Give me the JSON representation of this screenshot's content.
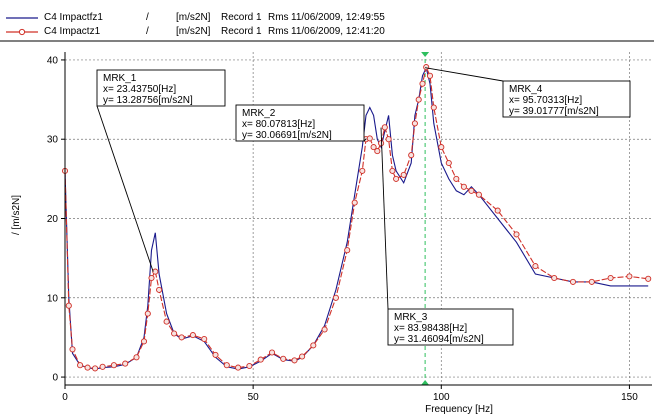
{
  "legend": [
    {
      "name": "C4 Impactfz1",
      "sep": "/",
      "unit": "[m/s2N]",
      "record": "Record 1",
      "kind": "Rms",
      "timestamp": "11/06/2009, 12:49:55",
      "color": "#1a1a8c"
    },
    {
      "name": "C4 Impactz1",
      "sep": "/",
      "unit": "[m/s2N]",
      "record": "Record 1",
      "kind": "Rms",
      "timestamp": "11/06/2009, 12:41:20",
      "color": "#d03028"
    }
  ],
  "chart_data": {
    "type": "line",
    "xlabel": "Frequency [Hz]",
    "ylabel": "/ [m/s2N]",
    "xlim": [
      0,
      156
    ],
    "ylim": [
      -1,
      41
    ],
    "xticks": [
      0,
      50,
      100,
      150
    ],
    "yticks": [
      0,
      10,
      20,
      30,
      40
    ],
    "grid": true,
    "series": [
      {
        "name": "C4 Impactfz1",
        "color": "#1a1a8c",
        "marker": "none",
        "x": [
          0,
          1,
          2,
          4,
          6,
          8,
          10,
          13,
          16,
          19,
          21,
          22,
          23,
          24,
          25,
          27,
          29,
          31,
          34,
          37,
          40,
          43,
          46,
          49,
          52,
          55,
          58,
          61,
          63,
          66,
          69,
          72,
          75,
          77,
          79,
          80,
          81,
          82,
          83,
          84,
          85,
          86,
          87,
          88,
          90,
          92,
          93,
          94,
          95,
          96,
          97,
          98,
          100,
          102,
          104,
          106,
          108,
          110,
          115,
          120,
          125,
          130,
          135,
          140,
          145,
          150,
          155
        ],
        "y": [
          26,
          10,
          3,
          1.5,
          1.2,
          1.0,
          1.2,
          1.3,
          1.6,
          2.5,
          5,
          9,
          16,
          18.2,
          13,
          8,
          5.5,
          4.8,
          5.2,
          4.5,
          2.5,
          1.3,
          1.0,
          1.3,
          2.0,
          3.0,
          2.2,
          2.0,
          2.5,
          4,
          6.5,
          11,
          17,
          23,
          29,
          33,
          34,
          33,
          30,
          29,
          31,
          33,
          28,
          26,
          24.5,
          27,
          33,
          35,
          38,
          39,
          37,
          32,
          27,
          25,
          23.5,
          23,
          24,
          23,
          20,
          17,
          13,
          12.5,
          12,
          12,
          11.5,
          11.5,
          11.5
        ]
      },
      {
        "name": "C4 Impactz1",
        "color": "#d03028",
        "marker": "circle",
        "x": [
          0,
          1,
          2,
          4,
          6,
          8,
          10,
          13,
          16,
          19,
          21,
          22,
          23,
          24,
          25,
          27,
          29,
          31,
          34,
          37,
          40,
          43,
          46,
          49,
          52,
          55,
          58,
          61,
          63,
          66,
          69,
          72,
          75,
          77,
          79,
          80,
          81,
          82,
          83,
          84,
          85,
          86,
          87,
          88,
          90,
          92,
          93,
          94,
          95,
          96,
          97,
          98,
          100,
          102,
          104,
          106,
          108,
          110,
          115,
          120,
          125,
          130,
          135,
          140,
          145,
          150,
          155
        ],
        "y": [
          26,
          9,
          3.5,
          1.5,
          1.2,
          1.1,
          1.3,
          1.5,
          1.7,
          2.5,
          4.5,
          8,
          12.5,
          13.3,
          11,
          7,
          5.5,
          5,
          5.3,
          4.8,
          2.8,
          1.5,
          1.2,
          1.4,
          2.2,
          3.1,
          2.3,
          2.1,
          2.6,
          4,
          6,
          10,
          16,
          22,
          26,
          30,
          30.1,
          29,
          28.5,
          29.5,
          31.5,
          30,
          26,
          25,
          25.5,
          28,
          32,
          35,
          37,
          39.1,
          38,
          34,
          29,
          27,
          25,
          24,
          23.5,
          23,
          21,
          18,
          14,
          12.5,
          12,
          12,
          12.5,
          12.7,
          12.4
        ]
      }
    ],
    "markers": [
      {
        "label": "MRK_1",
        "x_text": "x= 23.43750[Hz]",
        "y_text": "y= 13.28756[m/s2N]",
        "x": 23.4375,
        "y": 13.28756
      },
      {
        "label": "MRK_2",
        "x_text": "x= 80.07813[Hz]",
        "y_text": "y= 30.06691[m/s2N]",
        "x": 80.07813,
        "y": 30.06691
      },
      {
        "label": "MRK_3",
        "x_text": "x= 83.98438[Hz]",
        "y_text": "y= 31.46094[m/s2N]",
        "x": 83.98438,
        "y": 31.46094
      },
      {
        "label": "MRK_4",
        "x_text": "x= 95.70313[Hz]",
        "y_text": "y= 39.01777[m/s2N]",
        "x": 95.70313,
        "y": 39.01777
      }
    ],
    "cursor": {
      "x": 95.70313,
      "color": "#2fbf5f"
    }
  }
}
